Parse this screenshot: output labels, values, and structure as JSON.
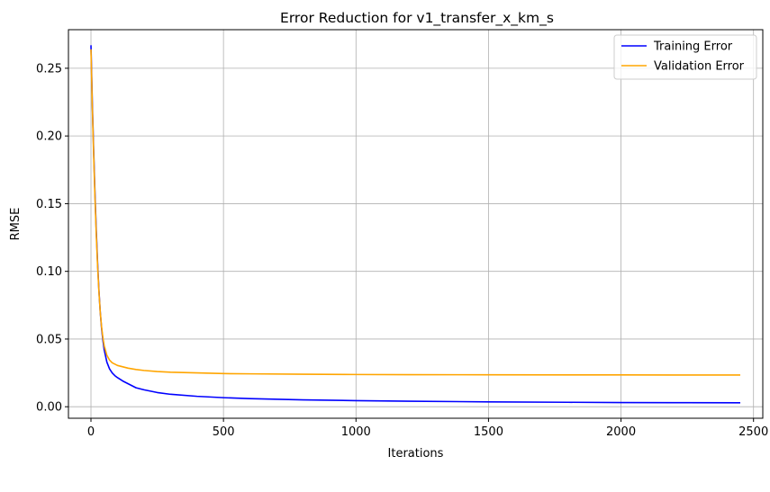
{
  "chart_data": {
    "type": "line",
    "title": "Error Reduction for v1_transfer_x_km_s",
    "xlabel": "Iterations",
    "ylabel": "RMSE",
    "xlim": [
      -85,
      2535
    ],
    "ylim": [
      -0.0085,
      0.2785
    ],
    "xticks": [
      0,
      500,
      1000,
      1500,
      2000,
      2500
    ],
    "xtick_labels": [
      "0",
      "500",
      "1000",
      "1500",
      "2000",
      "2500"
    ],
    "yticks": [
      0.0,
      0.05,
      0.1,
      0.15,
      0.2,
      0.25
    ],
    "ytick_labels": [
      "0.00",
      "0.05",
      "0.10",
      "0.15",
      "0.20",
      "0.25"
    ],
    "grid": true,
    "legend_position": "upper right",
    "series": [
      {
        "name": "Training Error",
        "color": "#0000ff",
        "x": [
          0,
          5,
          10,
          15,
          20,
          25,
          30,
          35,
          40,
          45,
          50,
          60,
          70,
          80,
          90,
          100,
          120,
          140,
          170,
          200,
          250,
          300,
          400,
          500,
          600,
          800,
          1000,
          1200,
          1500,
          1800,
          2000,
          2200,
          2450
        ],
        "y": [
          0.267,
          0.225,
          0.19,
          0.158,
          0.13,
          0.106,
          0.086,
          0.07,
          0.058,
          0.049,
          0.042,
          0.033,
          0.028,
          0.025,
          0.023,
          0.0215,
          0.019,
          0.017,
          0.014,
          0.0125,
          0.0105,
          0.0092,
          0.0077,
          0.0067,
          0.006,
          0.0051,
          0.0045,
          0.0041,
          0.0036,
          0.0033,
          0.0031,
          0.003,
          0.0029
        ]
      },
      {
        "name": "Validation Error",
        "color": "#ffa500",
        "x": [
          0,
          5,
          10,
          15,
          20,
          25,
          30,
          35,
          40,
          45,
          50,
          60,
          70,
          80,
          90,
          100,
          120,
          140,
          170,
          200,
          250,
          300,
          400,
          500,
          600,
          800,
          1000,
          1200,
          1500,
          1800,
          2000,
          2200,
          2450
        ],
        "y": [
          0.264,
          0.222,
          0.187,
          0.155,
          0.127,
          0.104,
          0.085,
          0.07,
          0.059,
          0.051,
          0.045,
          0.038,
          0.0345,
          0.0325,
          0.0315,
          0.0305,
          0.0295,
          0.0285,
          0.0275,
          0.0268,
          0.026,
          0.0255,
          0.025,
          0.0245,
          0.0243,
          0.024,
          0.0238,
          0.0237,
          0.0236,
          0.0235,
          0.0235,
          0.0234,
          0.0234
        ]
      }
    ]
  }
}
